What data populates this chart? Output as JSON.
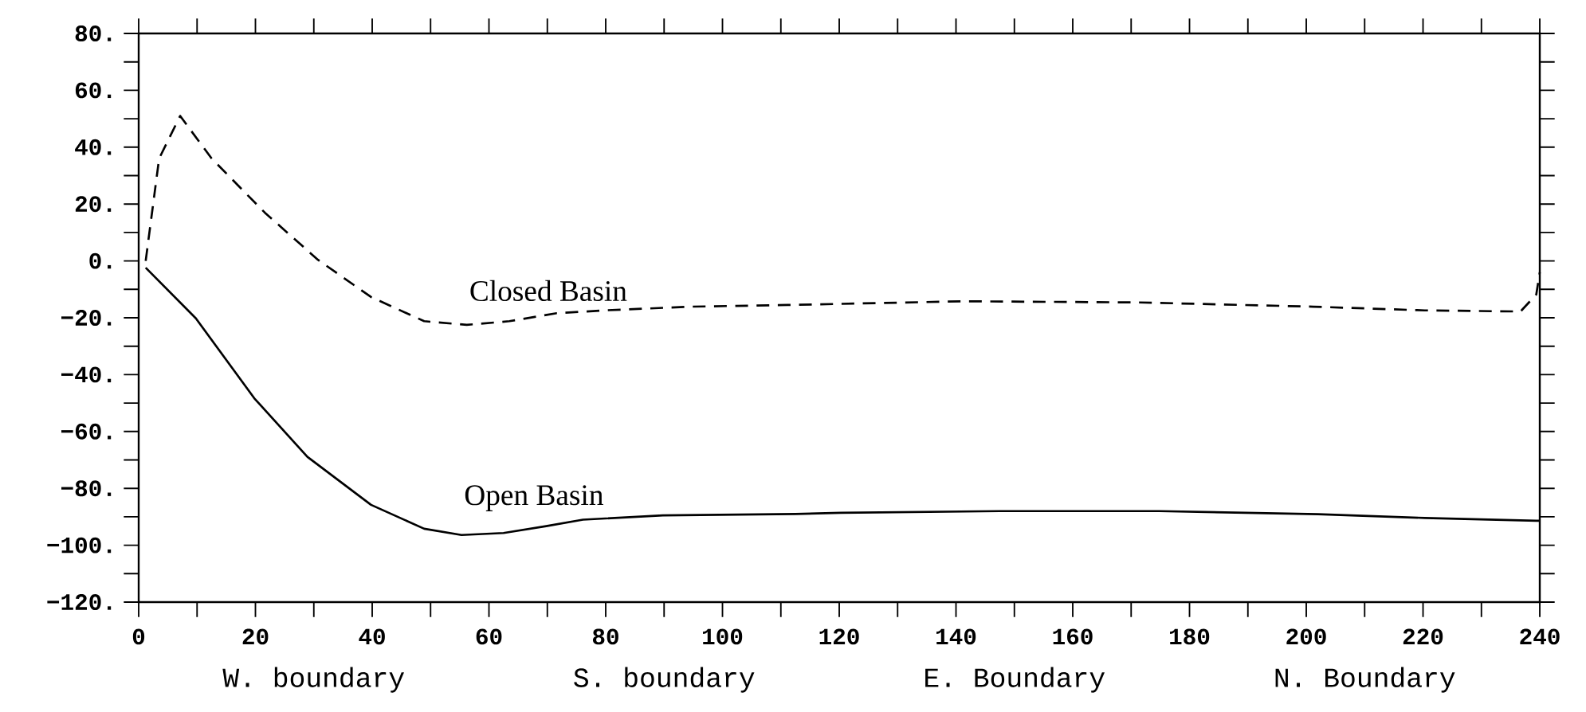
{
  "chart_data": {
    "type": "line",
    "xlim": [
      0,
      240
    ],
    "ylim": [
      -120,
      80
    ],
    "xticks": [
      0,
      20,
      40,
      60,
      80,
      100,
      120,
      140,
      160,
      180,
      200,
      220,
      240
    ],
    "yticks": [
      {
        "value": -120,
        "label": "−120."
      },
      {
        "value": -100,
        "label": "−100."
      },
      {
        "value": -80,
        "label": "−80."
      },
      {
        "value": -60,
        "label": "−60."
      },
      {
        "value": -40,
        "label": "−40."
      },
      {
        "value": -20,
        "label": "−20."
      },
      {
        "value": 0,
        "label": "0."
      },
      {
        "value": 20,
        "label": "20."
      },
      {
        "value": 40,
        "label": "40."
      },
      {
        "value": 60,
        "label": "60."
      },
      {
        "value": 80,
        "label": "80."
      }
    ],
    "annotations": [
      "W. boundary",
      "S. boundary",
      "E. Boundary",
      "N. Boundary"
    ],
    "series": [
      {
        "name": "Closed Basin",
        "color": "#000000",
        "line_style": "dashed",
        "x": [
          1.2,
          3.5,
          7.1,
          12.5,
          21.6,
          30.7,
          39.8,
          48.9,
          56.2,
          63.5,
          71.6,
          79.8,
          94.4,
          111.2,
          141.2,
          171.2,
          201.2,
          220.3,
          236.7,
          239.4,
          240
        ],
        "values": [
          0,
          36,
          51,
          36,
          17,
          0.4,
          -12.7,
          -21.2,
          -22.5,
          -21.2,
          -18.4,
          -17.4,
          -16.1,
          -15.5,
          -14.2,
          -14.6,
          -16.1,
          -17.4,
          -17.8,
          -11.8,
          -4
        ]
      },
      {
        "name": "Open Basin",
        "color": "#000000",
        "line_style": "solid",
        "x": [
          1.2,
          9.8,
          19.8,
          28.9,
          39.8,
          48.9,
          55.3,
          62.5,
          69.8,
          76.1,
          89.8,
          112.5,
          120.3,
          147.5,
          174.8,
          202,
          220.3,
          239.4,
          240
        ],
        "values": [
          -2.4,
          -20.2,
          -48.3,
          -68.9,
          -85.8,
          -94.2,
          -96.4,
          -95.7,
          -93.3,
          -91,
          -89.5,
          -89,
          -88.6,
          -88,
          -88,
          -89.1,
          -90.4,
          -91.4,
          -91.4
        ]
      }
    ]
  }
}
